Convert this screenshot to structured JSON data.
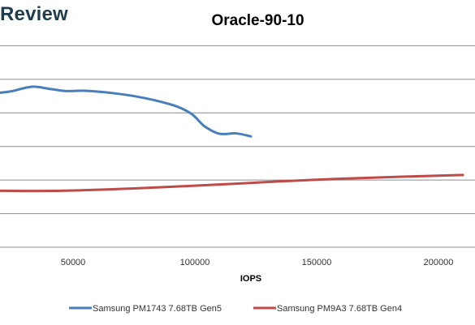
{
  "watermark": "Review",
  "chart_data": {
    "type": "line",
    "title": "Oracle-90-10",
    "xlabel": "IOPS",
    "ylabel": "",
    "xlim": [
      20000,
      215000
    ],
    "ylim": [
      0,
      7
    ],
    "x_ticks": [
      50000,
      100000,
      150000,
      200000
    ],
    "y_gridlines": [
      0,
      1,
      2,
      3,
      4,
      5,
      6,
      7
    ],
    "grid": true,
    "legend_position": "bottom",
    "series": [
      {
        "name": "Samsung PM1743 7.68TB Gen5",
        "color": "#4a7ebb",
        "points": [
          [
            20000,
            4.6
          ],
          [
            25000,
            4.65
          ],
          [
            33000,
            4.78
          ],
          [
            40000,
            4.72
          ],
          [
            47000,
            4.65
          ],
          [
            55000,
            4.66
          ],
          [
            65000,
            4.6
          ],
          [
            75000,
            4.5
          ],
          [
            85000,
            4.35
          ],
          [
            93000,
            4.18
          ],
          [
            99000,
            3.95
          ],
          [
            104000,
            3.6
          ],
          [
            110000,
            3.38
          ],
          [
            117000,
            3.39
          ],
          [
            123000,
            3.3
          ]
        ]
      },
      {
        "name": "Samsung PM9A3 7.68TB Gen4",
        "color": "#be4b48",
        "points": [
          [
            20000,
            1.68
          ],
          [
            45000,
            1.68
          ],
          [
            75000,
            1.75
          ],
          [
            105000,
            1.85
          ],
          [
            135000,
            1.96
          ],
          [
            160000,
            2.04
          ],
          [
            185000,
            2.1
          ],
          [
            210000,
            2.15
          ]
        ]
      }
    ]
  }
}
